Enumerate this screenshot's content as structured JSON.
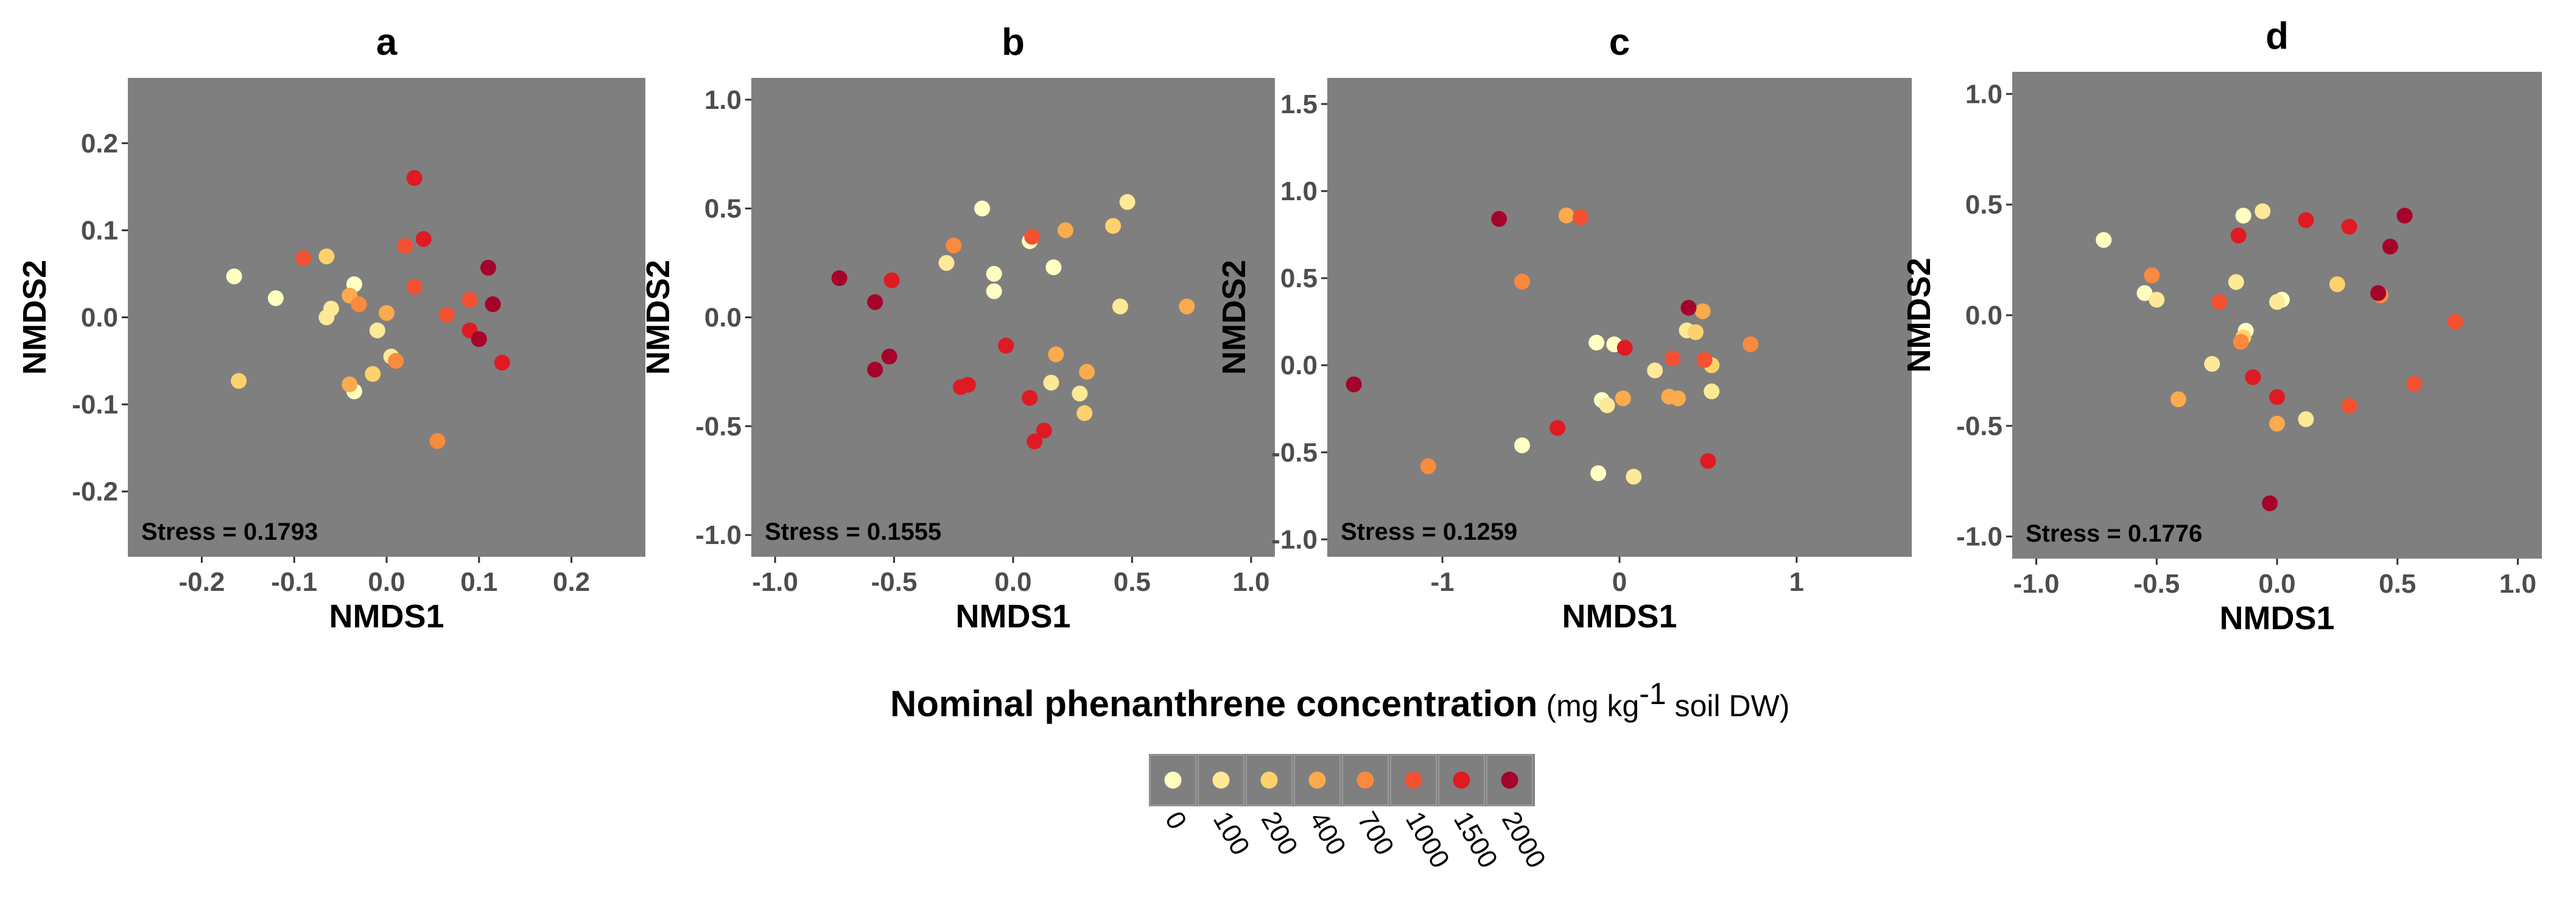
{
  "chart_data": [
    {
      "type": "scatter",
      "title": "a",
      "xlabel": "NMDS1",
      "ylabel": "NMDS2",
      "xlim": [
        -0.28,
        0.28
      ],
      "ylim": [
        -0.275,
        0.275
      ],
      "xticks": [
        -0.2,
        -0.1,
        0.0,
        0.1,
        0.2
      ],
      "xtick_labels": [
        "-0.2",
        "-0.1",
        "0.0",
        "0.1",
        "0.2"
      ],
      "yticks": [
        -0.2,
        -0.1,
        0.0,
        0.1,
        0.2
      ],
      "ytick_labels": [
        "-0.2",
        "-0.1",
        "0.0",
        "0.1",
        "0.2"
      ],
      "annotation": "Stress = 0.1793",
      "points": [
        {
          "x": -0.165,
          "y": 0.047,
          "conc": "0"
        },
        {
          "x": -0.12,
          "y": 0.022,
          "conc": "0"
        },
        {
          "x": -0.035,
          "y": 0.038,
          "conc": "0"
        },
        {
          "x": -0.035,
          "y": -0.085,
          "conc": "0"
        },
        {
          "x": -0.06,
          "y": 0.01,
          "conc": "100"
        },
        {
          "x": -0.065,
          "y": 0.0,
          "conc": "100"
        },
        {
          "x": -0.01,
          "y": -0.015,
          "conc": "100"
        },
        {
          "x": 0.005,
          "y": -0.045,
          "conc": "100"
        },
        {
          "x": -0.16,
          "y": -0.073,
          "conc": "200"
        },
        {
          "x": -0.065,
          "y": 0.07,
          "conc": "200"
        },
        {
          "x": -0.015,
          "y": -0.065,
          "conc": "200"
        },
        {
          "x": -0.04,
          "y": 0.025,
          "conc": "400"
        },
        {
          "x": -0.04,
          "y": -0.077,
          "conc": "400"
        },
        {
          "x": 0.0,
          "y": 0.005,
          "conc": "400"
        },
        {
          "x": -0.03,
          "y": 0.015,
          "conc": "700"
        },
        {
          "x": 0.055,
          "y": -0.142,
          "conc": "700"
        },
        {
          "x": 0.01,
          "y": -0.05,
          "conc": "700"
        },
        {
          "x": -0.09,
          "y": 0.068,
          "conc": "1000"
        },
        {
          "x": 0.03,
          "y": 0.035,
          "conc": "1000"
        },
        {
          "x": 0.065,
          "y": 0.003,
          "conc": "1000"
        },
        {
          "x": 0.09,
          "y": 0.02,
          "conc": "1000"
        },
        {
          "x": 0.02,
          "y": 0.082,
          "conc": "1000"
        },
        {
          "x": 0.03,
          "y": 0.16,
          "conc": "1500"
        },
        {
          "x": 0.04,
          "y": 0.09,
          "conc": "1500"
        },
        {
          "x": 0.09,
          "y": -0.015,
          "conc": "1500"
        },
        {
          "x": 0.125,
          "y": -0.052,
          "conc": "1500"
        },
        {
          "x": 0.11,
          "y": 0.057,
          "conc": "2000"
        },
        {
          "x": 0.115,
          "y": 0.015,
          "conc": "2000"
        },
        {
          "x": 0.1,
          "y": -0.025,
          "conc": "2000"
        }
      ]
    },
    {
      "type": "scatter",
      "title": "b",
      "xlabel": "NMDS1",
      "ylabel": "NMDS2",
      "xlim": [
        -1.1,
        1.1
      ],
      "ylim": [
        -1.1,
        1.1
      ],
      "xticks": [
        -1.0,
        -0.5,
        0.0,
        0.5,
        1.0
      ],
      "xtick_labels": [
        "-1.0",
        "-0.5",
        "0.0",
        "0.5",
        "1.0"
      ],
      "yticks": [
        -1.0,
        -0.5,
        0.0,
        0.5,
        1.0
      ],
      "ytick_labels": [
        "-1.0",
        "-0.5",
        "0.0",
        "0.5",
        "1.0"
      ],
      "annotation": "Stress = 0.1555",
      "points": [
        {
          "x": -0.13,
          "y": 0.5,
          "conc": "0"
        },
        {
          "x": -0.08,
          "y": 0.2,
          "conc": "0"
        },
        {
          "x": -0.08,
          "y": 0.12,
          "conc": "0"
        },
        {
          "x": 0.07,
          "y": 0.35,
          "conc": "0"
        },
        {
          "x": 0.17,
          "y": 0.23,
          "conc": "0"
        },
        {
          "x": -0.28,
          "y": 0.25,
          "conc": "100"
        },
        {
          "x": 0.16,
          "y": -0.3,
          "conc": "100"
        },
        {
          "x": 0.28,
          "y": -0.35,
          "conc": "100"
        },
        {
          "x": 0.48,
          "y": 0.53,
          "conc": "100"
        },
        {
          "x": 0.45,
          "y": 0.05,
          "conc": "100"
        },
        {
          "x": 0.3,
          "y": -0.44,
          "conc": "200"
        },
        {
          "x": 0.42,
          "y": 0.42,
          "conc": "200"
        },
        {
          "x": 0.22,
          "y": 0.4,
          "conc": "400"
        },
        {
          "x": 0.18,
          "y": -0.17,
          "conc": "400"
        },
        {
          "x": 0.31,
          "y": -0.25,
          "conc": "400"
        },
        {
          "x": 0.73,
          "y": 0.05,
          "conc": "400"
        },
        {
          "x": -0.25,
          "y": 0.33,
          "conc": "700"
        },
        {
          "x": 0.08,
          "y": 0.37,
          "conc": "1000"
        },
        {
          "x": -0.22,
          "y": -0.32,
          "conc": "1500"
        },
        {
          "x": -0.03,
          "y": -0.13,
          "conc": "1500"
        },
        {
          "x": 0.07,
          "y": -0.37,
          "conc": "1500"
        },
        {
          "x": 0.13,
          "y": -0.52,
          "conc": "1500"
        },
        {
          "x": 0.09,
          "y": -0.57,
          "conc": "1500"
        },
        {
          "x": -0.51,
          "y": 0.17,
          "conc": "1500"
        },
        {
          "x": -0.19,
          "y": -0.31,
          "conc": "1500"
        },
        {
          "x": -0.73,
          "y": 0.18,
          "conc": "2000"
        },
        {
          "x": -0.58,
          "y": 0.07,
          "conc": "2000"
        },
        {
          "x": -0.52,
          "y": -0.18,
          "conc": "2000"
        },
        {
          "x": -0.58,
          "y": -0.24,
          "conc": "2000"
        }
      ]
    },
    {
      "type": "scatter",
      "title": "c",
      "xlabel": "NMDS1",
      "ylabel": "NMDS2",
      "xlim": [
        -1.65,
        1.65
      ],
      "ylim": [
        -1.1,
        1.65
      ],
      "xticks": [
        -1,
        0,
        1
      ],
      "xtick_labels": [
        "-1",
        "0",
        "1"
      ],
      "yticks": [
        -1.0,
        -0.5,
        0.0,
        0.5,
        1.0,
        1.5
      ],
      "ytick_labels": [
        "-1.0",
        "-0.5",
        "0.0",
        "0.5",
        "1.0",
        "1.5"
      ],
      "annotation": "Stress = 0.1259",
      "points": [
        {
          "x": -0.13,
          "y": 0.13,
          "conc": "0"
        },
        {
          "x": -0.03,
          "y": 0.12,
          "conc": "0"
        },
        {
          "x": -0.1,
          "y": -0.2,
          "conc": "0"
        },
        {
          "x": -0.55,
          "y": -0.46,
          "conc": "0"
        },
        {
          "x": -0.12,
          "y": -0.62,
          "conc": "0"
        },
        {
          "x": -0.07,
          "y": -0.23,
          "conc": "100"
        },
        {
          "x": 0.08,
          "y": -0.64,
          "conc": "100"
        },
        {
          "x": 0.2,
          "y": -0.03,
          "conc": "100"
        },
        {
          "x": 0.52,
          "y": -0.15,
          "conc": "100"
        },
        {
          "x": 0.38,
          "y": 0.2,
          "conc": "100"
        },
        {
          "x": 0.43,
          "y": 0.19,
          "conc": "200"
        },
        {
          "x": 0.52,
          "y": 0.0,
          "conc": "200"
        },
        {
          "x": -0.3,
          "y": 0.86,
          "conc": "400"
        },
        {
          "x": 0.02,
          "y": -0.19,
          "conc": "400"
        },
        {
          "x": 0.28,
          "y": -0.18,
          "conc": "400"
        },
        {
          "x": 0.33,
          "y": -0.19,
          "conc": "400"
        },
        {
          "x": 0.47,
          "y": 0.31,
          "conc": "400"
        },
        {
          "x": -1.08,
          "y": -0.58,
          "conc": "700"
        },
        {
          "x": -0.55,
          "y": 0.48,
          "conc": "700"
        },
        {
          "x": 0.74,
          "y": 0.12,
          "conc": "700"
        },
        {
          "x": -0.22,
          "y": 0.85,
          "conc": "1000"
        },
        {
          "x": 0.3,
          "y": 0.04,
          "conc": "1000"
        },
        {
          "x": 0.48,
          "y": 0.03,
          "conc": "1000"
        },
        {
          "x": 0.03,
          "y": 0.1,
          "conc": "1500"
        },
        {
          "x": -0.35,
          "y": -0.36,
          "conc": "1500"
        },
        {
          "x": 0.5,
          "y": -0.55,
          "conc": "1500"
        },
        {
          "x": -1.5,
          "y": -0.11,
          "conc": "2000"
        },
        {
          "x": -0.68,
          "y": 0.84,
          "conc": "2000"
        },
        {
          "x": 0.39,
          "y": 0.33,
          "conc": "2000"
        }
      ]
    },
    {
      "type": "scatter",
      "title": "d",
      "xlabel": "NMDS1",
      "ylabel": "NMDS2",
      "xlim": [
        -1.1,
        1.1
      ],
      "ylim": [
        -1.1,
        1.1
      ],
      "xticks": [
        -1.0,
        -0.5,
        0.0,
        0.5,
        1.0
      ],
      "xtick_labels": [
        "-1.0",
        "-0.5",
        "0.0",
        "0.5",
        "1.0"
      ],
      "yticks": [
        -1.0,
        -0.5,
        0.0,
        0.5,
        1.0
      ],
      "ytick_labels": [
        "-1.0",
        "-0.5",
        "0.0",
        "0.5",
        "1.0"
      ],
      "annotation": "Stress = 0.1776",
      "points": [
        {
          "x": -0.72,
          "y": 0.34,
          "conc": "0"
        },
        {
          "x": -0.55,
          "y": 0.1,
          "conc": "0"
        },
        {
          "x": -0.14,
          "y": 0.45,
          "conc": "0"
        },
        {
          "x": -0.13,
          "y": -0.07,
          "conc": "0"
        },
        {
          "x": 0.02,
          "y": 0.07,
          "conc": "0"
        },
        {
          "x": -0.5,
          "y": 0.07,
          "conc": "100"
        },
        {
          "x": -0.06,
          "y": 0.47,
          "conc": "100"
        },
        {
          "x": -0.17,
          "y": 0.15,
          "conc": "100"
        },
        {
          "x": 0.0,
          "y": 0.06,
          "conc": "100"
        },
        {
          "x": -0.27,
          "y": -0.22,
          "conc": "100"
        },
        {
          "x": 0.12,
          "y": -0.47,
          "conc": "100"
        },
        {
          "x": -0.14,
          "y": -0.1,
          "conc": "200"
        },
        {
          "x": 0.25,
          "y": 0.14,
          "conc": "200"
        },
        {
          "x": -0.41,
          "y": -0.38,
          "conc": "400"
        },
        {
          "x": 0.0,
          "y": -0.49,
          "conc": "400"
        },
        {
          "x": -0.52,
          "y": 0.18,
          "conc": "700"
        },
        {
          "x": -0.15,
          "y": -0.12,
          "conc": "700"
        },
        {
          "x": 0.43,
          "y": 0.09,
          "conc": "700"
        },
        {
          "x": -0.24,
          "y": 0.06,
          "conc": "1000"
        },
        {
          "x": 0.3,
          "y": -0.41,
          "conc": "1000"
        },
        {
          "x": 0.57,
          "y": -0.31,
          "conc": "1000"
        },
        {
          "x": 0.74,
          "y": -0.03,
          "conc": "1000"
        },
        {
          "x": -0.16,
          "y": 0.36,
          "conc": "1500"
        },
        {
          "x": 0.12,
          "y": 0.43,
          "conc": "1500"
        },
        {
          "x": -0.1,
          "y": -0.28,
          "conc": "1500"
        },
        {
          "x": 0.3,
          "y": 0.4,
          "conc": "1500"
        },
        {
          "x": 0.0,
          "y": -0.37,
          "conc": "1500"
        },
        {
          "x": 0.53,
          "y": 0.45,
          "conc": "2000"
        },
        {
          "x": 0.47,
          "y": 0.31,
          "conc": "2000"
        },
        {
          "x": 0.42,
          "y": 0.1,
          "conc": "2000"
        },
        {
          "x": -0.03,
          "y": -0.85,
          "conc": "2000"
        }
      ]
    }
  ],
  "legend": {
    "title": "Nominal phenanthrene concentration",
    "units_prefix": "(mg kg",
    "units_sup": "-1",
    "units_suffix": " soil DW)",
    "entries": [
      {
        "label": "0",
        "color": "#ffffc2"
      },
      {
        "label": "100",
        "color": "#fde996"
      },
      {
        "label": "200",
        "color": "#fed16d"
      },
      {
        "label": "400",
        "color": "#fbaa4d"
      },
      {
        "label": "700",
        "color": "#fa8a3d"
      },
      {
        "label": "1000",
        "color": "#f45232"
      },
      {
        "label": "1500",
        "color": "#df1a22"
      },
      {
        "label": "2000",
        "color": "#a5032a"
      }
    ]
  },
  "style": {
    "panel_background": "#7f7f7f",
    "tick_text_color": "#4d4d4d"
  }
}
